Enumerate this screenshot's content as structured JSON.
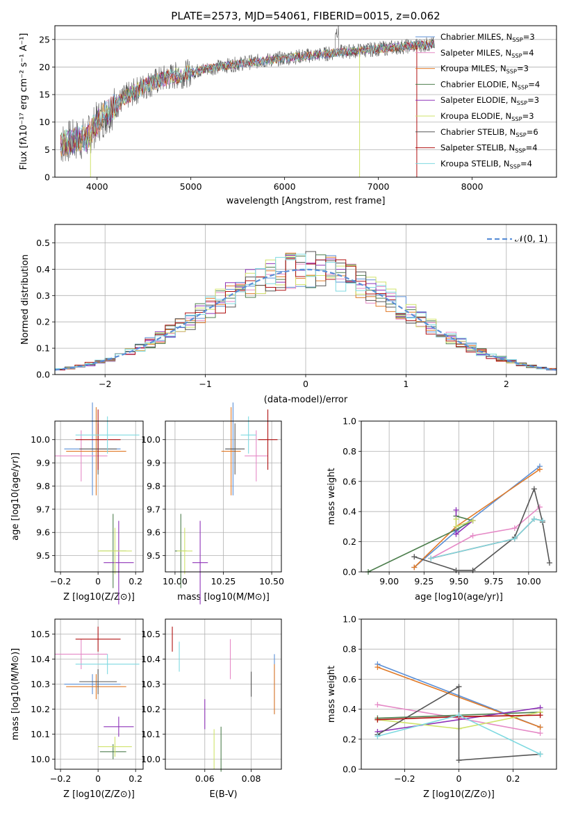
{
  "colors": {
    "chabrier_miles": "#5b8fd6",
    "salpeter_miles": "#e589c6",
    "kroupa_miles": "#e07a28",
    "chabrier_elodie": "#4e7f4e",
    "salpeter_elodie": "#8e32b8",
    "kroupa_elodie": "#cfe36a",
    "chabrier_stelib": "#555555",
    "salpeter_stelib": "#b01010",
    "kroupa_stelib": "#7dd9e0",
    "grid": "#b0b0b0",
    "normal_curve": "#5b8fd6"
  },
  "chart_data": [
    {
      "id": "spectrum",
      "type": "line",
      "title": "PLATE=2573, MJD=54061, FIBERID=0015, z=0.062",
      "xlabel": "wavelength [Angstrom, rest frame]",
      "ylabel": "Flux [fλ10⁻¹⁷ erg cm⁻² s⁻¹ A⁻¹]",
      "xlim": [
        3550,
        8900
      ],
      "ylim": [
        0,
        27.5
      ],
      "xticks": [
        4000,
        5000,
        6000,
        7000,
        8000
      ],
      "yticks": [
        0,
        5,
        10,
        15,
        20,
        25
      ],
      "continuum": {
        "x": [
          3600,
          3700,
          3800,
          3900,
          4000,
          4100,
          4200,
          4300,
          4400,
          4500,
          4600,
          4700,
          4800,
          4900,
          5000,
          5200,
          5400,
          5600,
          5800,
          6000,
          6200,
          6400,
          6600,
          6800,
          7000,
          7200,
          7400,
          7600
        ],
        "y": [
          6.0,
          6.5,
          6.8,
          7.2,
          10.0,
          11.5,
          13.0,
          14.5,
          15.5,
          16.5,
          17.2,
          17.8,
          18.3,
          18.6,
          19.0,
          19.8,
          20.3,
          20.8,
          21.2,
          21.6,
          22.0,
          22.3,
          22.7,
          23.0,
          23.3,
          23.6,
          23.9,
          24.2
        ]
      },
      "legend_position": "upper right",
      "legend": [
        "Chabrier MILES, N_SSP=3",
        "Salpeter MILES, N_SSP=4",
        "Kroupa MILES, N_SSP=3",
        "Chabrier ELODIE, N_SSP=4",
        "Salpeter ELODIE, N_SSP=3",
        "Kroupa ELODIE, N_SSP=3",
        "Chabrier STELIB, N_SSP=6",
        "Salpeter STELIB, N_SSP=4",
        "Kroupa STELIB, N_SSP=4"
      ]
    },
    {
      "id": "residuals",
      "type": "histogram",
      "xlabel": "(data-model)/error",
      "ylabel": "Normed distribution",
      "xlim": [
        -2.5,
        2.5
      ],
      "ylim": [
        0,
        0.57
      ],
      "xticks": [
        -2,
        -1,
        0,
        1,
        2
      ],
      "yticks": [
        0.0,
        0.1,
        0.2,
        0.3,
        0.4,
        0.5
      ],
      "bin_width": 0.1,
      "legend": [
        "𝒩(0, 1)"
      ],
      "legend_position": "upper right"
    },
    {
      "id": "age_vs_Z",
      "type": "scatter",
      "xlabel": "Z [log10(Z/Z⊙)]",
      "ylabel": "age  [log10(age/yr)]",
      "xlim": [
        -0.23,
        0.24
      ],
      "ylim": [
        9.43,
        10.08
      ],
      "xticks": [
        -0.2,
        0.0,
        0.2
      ],
      "yticks": [
        9.5,
        9.6,
        9.7,
        9.8,
        9.9,
        10.0
      ],
      "points": [
        {
          "model": "chabrier_miles",
          "x": -0.03,
          "xerr": 0.15,
          "y": 9.96,
          "yerr": 0.2
        },
        {
          "model": "salpeter_miles",
          "x": -0.09,
          "xerr": 0.14,
          "y": 9.93,
          "yerr": 0.11
        },
        {
          "model": "kroupa_miles",
          "x": -0.01,
          "xerr": 0.16,
          "y": 9.95,
          "yerr": 0.19
        },
        {
          "model": "chabrier_elodie",
          "x": 0.08,
          "xerr": 0.07,
          "y": 9.52,
          "yerr": 0.16
        },
        {
          "model": "salpeter_elodie",
          "x": 0.11,
          "xerr": 0.08,
          "y": 9.47,
          "yerr": 0.18
        },
        {
          "model": "kroupa_elodie",
          "x": 0.09,
          "xerr": 0.09,
          "y": 9.52,
          "yerr": 0.1
        },
        {
          "model": "chabrier_stelib",
          "x": 0.0,
          "xerr": 0.1,
          "y": 9.96,
          "yerr": 0.11
        },
        {
          "model": "salpeter_stelib",
          "x": 0.0,
          "xerr": 0.12,
          "y": 10.0,
          "yerr": 0.13
        },
        {
          "model": "kroupa_stelib",
          "x": 0.05,
          "xerr": 0.17,
          "y": 10.02,
          "yerr": 0.08
        }
      ]
    },
    {
      "id": "age_vs_mass",
      "type": "scatter",
      "xlabel": "mass [log10(M/M⊙)]",
      "xlim": [
        9.95,
        10.55
      ],
      "ylim": [
        9.43,
        10.08
      ],
      "xticks": [
        10.0,
        10.25,
        10.5
      ],
      "xtick_labels": [
        "10.00",
        "10.25",
        "10.50"
      ],
      "yticks": [
        9.5,
        9.6,
        9.7,
        9.8,
        9.9,
        10.0
      ],
      "points": [
        {
          "model": "chabrier_miles",
          "x": 10.3,
          "xerr": 0.04,
          "y": 9.96,
          "yerr": 0.2
        },
        {
          "model": "salpeter_miles",
          "x": 10.42,
          "xerr": 0.06,
          "y": 9.93,
          "yerr": 0.11
        },
        {
          "model": "kroupa_miles",
          "x": 10.29,
          "xerr": 0.05,
          "y": 9.95,
          "yerr": 0.19
        },
        {
          "model": "chabrier_elodie",
          "x": 10.03,
          "xerr": 0.03,
          "y": 9.52,
          "yerr": 0.16
        },
        {
          "model": "salpeter_elodie",
          "x": 10.13,
          "xerr": 0.04,
          "y": 9.47,
          "yerr": 0.18
        },
        {
          "model": "kroupa_elodie",
          "x": 10.05,
          "xerr": 0.04,
          "y": 9.52,
          "yerr": 0.1
        },
        {
          "model": "chabrier_stelib",
          "x": 10.31,
          "xerr": 0.05,
          "y": 9.96,
          "yerr": 0.11
        },
        {
          "model": "salpeter_stelib",
          "x": 10.48,
          "xerr": 0.05,
          "y": 10.0,
          "yerr": 0.13
        },
        {
          "model": "kroupa_stelib",
          "x": 10.38,
          "xerr": 0.04,
          "y": 10.02,
          "yerr": 0.08
        }
      ]
    },
    {
      "id": "weight_vs_age",
      "type": "line",
      "xlabel": "age  [log10(age/yr)]",
      "ylabel": "mass weight",
      "xlim": [
        8.8,
        10.2
      ],
      "ylim": [
        0,
        1.0
      ],
      "xticks": [
        9.0,
        9.25,
        9.5,
        9.75,
        10.0
      ],
      "xtick_labels": [
        "9.00",
        "9.25",
        "9.50",
        "9.75",
        "10.00"
      ],
      "yticks": [
        0.0,
        0.2,
        0.4,
        0.6,
        0.8,
        1.0
      ],
      "series": [
        {
          "model": "chabrier_miles",
          "x": [
            9.18,
            9.48,
            10.08
          ],
          "y": [
            0.03,
            0.27,
            0.7
          ]
        },
        {
          "model": "salpeter_miles",
          "x": [
            9.3,
            9.6,
            9.9,
            10.08
          ],
          "y": [
            0.09,
            0.24,
            0.29,
            0.43
          ]
        },
        {
          "model": "kroupa_miles",
          "x": [
            9.18,
            9.48,
            10.08
          ],
          "y": [
            0.03,
            0.3,
            0.68
          ]
        },
        {
          "model": "chabrier_elodie",
          "x": [
            8.85,
            9.48,
            9.6,
            9.48
          ],
          "y": [
            0.0,
            0.28,
            0.34,
            0.37
          ]
        },
        {
          "model": "salpeter_elodie",
          "x": [
            9.48,
            9.48,
            9.6
          ],
          "y": [
            0.41,
            0.25,
            0.34
          ]
        },
        {
          "model": "kroupa_elodie",
          "x": [
            9.48,
            9.48,
            9.6
          ],
          "y": [
            0.35,
            0.3,
            0.34
          ]
        },
        {
          "model": "chabrier_stelib",
          "x": [
            9.18,
            9.48,
            9.6,
            9.9,
            10.04,
            10.1,
            10.15
          ],
          "y": [
            0.1,
            0.01,
            0.01,
            0.23,
            0.55,
            0.33,
            0.06
          ]
        },
        {
          "model": "salpeter_stelib",
          "x": [
            9.3,
            9.9,
            10.04,
            10.1
          ],
          "y": [
            0.09,
            0.22,
            0.35,
            0.34
          ]
        },
        {
          "model": "kroupa_stelib",
          "x": [
            9.3,
            9.9,
            10.04,
            10.1
          ],
          "y": [
            0.09,
            0.22,
            0.35,
            0.34
          ]
        }
      ]
    },
    {
      "id": "mass_vs_Z",
      "type": "scatter",
      "xlabel": "Z [log10(Z/Z⊙)]",
      "ylabel": "mass [log10(M/M⊙)]",
      "xlim": [
        -0.23,
        0.24
      ],
      "ylim": [
        9.96,
        10.56
      ],
      "xticks": [
        -0.2,
        0.0,
        0.2
      ],
      "yticks": [
        10.0,
        10.1,
        10.2,
        10.3,
        10.4,
        10.5
      ],
      "points": [
        {
          "model": "chabrier_miles",
          "x": -0.03,
          "xerr": 0.15,
          "y": 10.3,
          "yerr": 0.04
        },
        {
          "model": "salpeter_miles",
          "x": -0.09,
          "xerr": 0.14,
          "y": 10.42,
          "yerr": 0.06
        },
        {
          "model": "kroupa_miles",
          "x": -0.01,
          "xerr": 0.16,
          "y": 10.29,
          "yerr": 0.05
        },
        {
          "model": "chabrier_elodie",
          "x": 0.08,
          "xerr": 0.07,
          "y": 10.03,
          "yerr": 0.03
        },
        {
          "model": "salpeter_elodie",
          "x": 0.11,
          "xerr": 0.08,
          "y": 10.13,
          "yerr": 0.04
        },
        {
          "model": "kroupa_elodie",
          "x": 0.09,
          "xerr": 0.09,
          "y": 10.05,
          "yerr": 0.04
        },
        {
          "model": "chabrier_stelib",
          "x": 0.0,
          "xerr": 0.1,
          "y": 10.31,
          "yerr": 0.05
        },
        {
          "model": "salpeter_stelib",
          "x": 0.0,
          "xerr": 0.12,
          "y": 10.48,
          "yerr": 0.05
        },
        {
          "model": "kroupa_stelib",
          "x": 0.05,
          "xerr": 0.17,
          "y": 10.38,
          "yerr": 0.04
        }
      ]
    },
    {
      "id": "mass_vs_ebv",
      "type": "scatter",
      "xlabel": "E(B-V)",
      "xlim": [
        0.043,
        0.093
      ],
      "ylim": [
        9.96,
        10.56
      ],
      "xticks": [
        0.06,
        0.08
      ],
      "xtick_labels": [
        "0.06",
        "0.08"
      ],
      "yticks": [
        10.0,
        10.1,
        10.2,
        10.3,
        10.4,
        10.5
      ],
      "points": [
        {
          "model": "chabrier_miles",
          "x": 0.09,
          "y": 10.3,
          "yerr": 0.12
        },
        {
          "model": "salpeter_miles",
          "x": 0.071,
          "y": 10.4,
          "yerr": 0.08
        },
        {
          "model": "kroupa_miles",
          "x": 0.09,
          "y": 10.28,
          "yerr": 0.1
        },
        {
          "model": "chabrier_elodie",
          "x": 0.067,
          "y": 10.04,
          "yerr": 0.09
        },
        {
          "model": "salpeter_elodie",
          "x": 0.06,
          "y": 10.18,
          "yerr": 0.06
        },
        {
          "model": "kroupa_elodie",
          "x": 0.064,
          "y": 10.04,
          "yerr": 0.08
        },
        {
          "model": "chabrier_stelib",
          "x": 0.08,
          "y": 10.3,
          "yerr": 0.05
        },
        {
          "model": "salpeter_stelib",
          "x": 0.046,
          "y": 10.48,
          "yerr": 0.05
        },
        {
          "model": "kroupa_stelib",
          "x": 0.049,
          "y": 10.41,
          "yerr": 0.06
        }
      ]
    },
    {
      "id": "weight_vs_Z",
      "type": "line",
      "xlabel": "Z [log10(Z/Z⊙)]",
      "ylabel": "mass weight",
      "xlim": [
        -0.36,
        0.36
      ],
      "ylim": [
        0,
        1.0
      ],
      "xticks": [
        -0.2,
        0.0,
        0.2
      ],
      "yticks": [
        0.0,
        0.2,
        0.4,
        0.6,
        0.8,
        1.0
      ],
      "series": [
        {
          "model": "chabrier_miles",
          "x": [
            -0.3,
            0.3
          ],
          "y": [
            0.7,
            0.28
          ]
        },
        {
          "model": "salpeter_miles",
          "x": [
            -0.3,
            0.0,
            0.3
          ],
          "y": [
            0.43,
            0.34,
            0.24
          ]
        },
        {
          "model": "kroupa_miles",
          "x": [
            -0.3,
            0.3
          ],
          "y": [
            0.68,
            0.28
          ]
        },
        {
          "model": "chabrier_elodie",
          "x": [
            -0.3,
            0.3
          ],
          "y": [
            0.34,
            0.38
          ]
        },
        {
          "model": "salpeter_elodie",
          "x": [
            -0.3,
            0.3
          ],
          "y": [
            0.25,
            0.41
          ]
        },
        {
          "model": "kroupa_elodie",
          "x": [
            -0.3,
            0.0,
            0.3
          ],
          "y": [
            0.33,
            0.27,
            0.38
          ]
        },
        {
          "model": "chabrier_stelib",
          "x": [
            -0.3,
            0.0,
            0.0,
            0.3
          ],
          "y": [
            0.23,
            0.55,
            0.06,
            0.1
          ]
        },
        {
          "model": "salpeter_stelib",
          "x": [
            -0.3,
            0.0,
            0.3
          ],
          "y": [
            0.33,
            0.35,
            0.36
          ]
        },
        {
          "model": "kroupa_stelib",
          "x": [
            -0.3,
            0.0,
            0.3
          ],
          "y": [
            0.22,
            0.36,
            0.1
          ]
        }
      ]
    }
  ]
}
